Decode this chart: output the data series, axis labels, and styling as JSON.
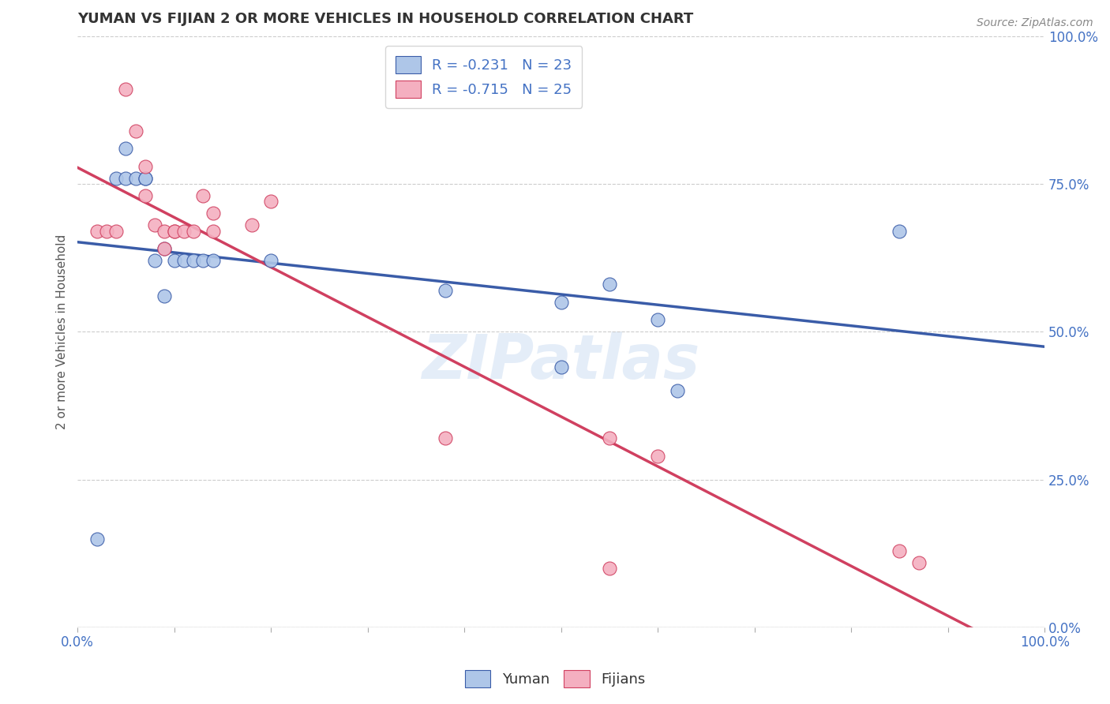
{
  "title": "YUMAN VS FIJIAN 2 OR MORE VEHICLES IN HOUSEHOLD CORRELATION CHART",
  "source": "Source: ZipAtlas.com",
  "ylabel": "2 or more Vehicles in Household",
  "xlim": [
    0.0,
    1.0
  ],
  "ylim": [
    0.0,
    1.0
  ],
  "ytick_values": [
    0.0,
    0.25,
    0.5,
    0.75,
    1.0
  ],
  "grid_color": "#cccccc",
  "background_color": "#ffffff",
  "title_color": "#333333",
  "axis_color": "#4472c4",
  "watermark_text": "ZIPatlas",
  "legend_r_yuman": "-0.231",
  "legend_n_yuman": "23",
  "legend_r_fijian": "-0.715",
  "legend_n_fijian": "25",
  "yuman_color": "#aec6e8",
  "fijian_color": "#f4afc0",
  "yuman_line_color": "#3a5ca8",
  "fijian_line_color": "#d04060",
  "yuman_x": [
    0.02,
    0.04,
    0.05,
    0.06,
    0.07,
    0.07,
    0.08,
    0.09,
    0.09,
    0.1,
    0.11,
    0.12,
    0.13,
    0.14,
    0.2,
    0.38,
    0.5,
    0.5,
    0.55,
    0.6,
    0.62,
    0.85,
    0.05
  ],
  "yuman_y": [
    0.15,
    0.76,
    0.76,
    0.76,
    0.76,
    0.76,
    0.62,
    0.64,
    0.56,
    0.62,
    0.62,
    0.62,
    0.62,
    0.62,
    0.62,
    0.57,
    0.55,
    0.44,
    0.58,
    0.52,
    0.4,
    0.67,
    0.81
  ],
  "fijian_x": [
    0.02,
    0.03,
    0.04,
    0.05,
    0.06,
    0.07,
    0.07,
    0.08,
    0.09,
    0.09,
    0.1,
    0.1,
    0.11,
    0.12,
    0.13,
    0.14,
    0.14,
    0.18,
    0.2,
    0.38,
    0.55,
    0.55,
    0.6,
    0.85,
    0.87
  ],
  "fijian_y": [
    0.67,
    0.67,
    0.67,
    0.91,
    0.84,
    0.78,
    0.73,
    0.68,
    0.67,
    0.64,
    0.67,
    0.67,
    0.67,
    0.67,
    0.73,
    0.67,
    0.7,
    0.68,
    0.72,
    0.32,
    0.32,
    0.1,
    0.29,
    0.13,
    0.11
  ]
}
